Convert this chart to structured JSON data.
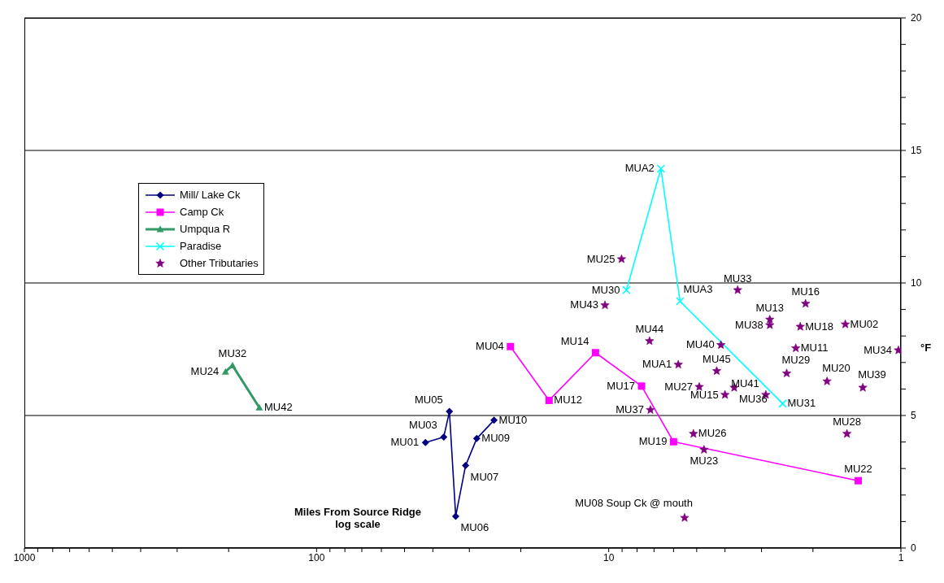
{
  "chart_data": {
    "type": "line",
    "xlabel": "Miles From Source Ridge\nlog scale",
    "ylabel": "°F",
    "log": "x",
    "xlim": [
      1000,
      1
    ],
    "xticks": [
      1000,
      {
        "value": 900,
        "label": null
      },
      {
        "value": 800,
        "label": null
      },
      {
        "value": 700,
        "label": null
      },
      {
        "value": 600,
        "label": null
      },
      {
        "value": 500,
        "label": null
      },
      {
        "value": 400,
        "label": null
      },
      {
        "value": 300,
        "label": null
      },
      {
        "value": 200,
        "label": null
      },
      100,
      {
        "value": 90,
        "label": null
      },
      {
        "value": 80,
        "label": null
      },
      {
        "value": 70,
        "label": null
      },
      {
        "value": 60,
        "label": null
      },
      {
        "value": 50,
        "label": null
      },
      {
        "value": 40,
        "label": null
      },
      {
        "value": 30,
        "label": null
      },
      {
        "value": 20,
        "label": null
      },
      10,
      {
        "value": 9,
        "label": null
      },
      {
        "value": 8,
        "label": null
      },
      {
        "value": 7,
        "label": null
      },
      {
        "value": 6,
        "label": null
      },
      {
        "value": 5,
        "label": null
      },
      {
        "value": 4,
        "label": null
      },
      {
        "value": 3,
        "label": null
      },
      {
        "value": 2,
        "label": null
      },
      1
    ],
    "ylim": [
      0,
      20
    ],
    "yticks": [
      0,
      {
        "value": 1,
        "label": null
      },
      {
        "value": 2,
        "label": null
      },
      {
        "value": 3,
        "label": null
      },
      {
        "value": 4,
        "label": null
      },
      5,
      {
        "value": 6,
        "label": null
      },
      {
        "value": 7,
        "label": null
      },
      {
        "value": 8,
        "label": null
      },
      {
        "value": 9,
        "label": null
      },
      10,
      {
        "value": 11,
        "label": null
      },
      {
        "value": 12,
        "label": null
      },
      {
        "value": 13,
        "label": null
      },
      {
        "value": 14,
        "label": null
      },
      15,
      {
        "value": 16,
        "label": null
      },
      {
        "value": 17,
        "label": null
      },
      {
        "value": 18,
        "label": null
      },
      {
        "value": 19,
        "label": null
      },
      20
    ],
    "grid": "y",
    "legend": "top left",
    "series": [
      {
        "name": "Mill/ Lake Ck",
        "color": "#000080",
        "marker": "diamond",
        "x": [
          42.4,
          36.7,
          35.1,
          33.4,
          30.9,
          28.3,
          24.7
        ],
        "values": [
          3.98,
          4.19,
          5.15,
          1.2,
          3.11,
          4.13,
          4.82
        ]
      },
      {
        "name": "Camp Ck",
        "color": "#ff00ff",
        "marker": "square",
        "x": [
          21.7,
          16.0,
          11.1,
          7.72,
          6.0,
          1.4
        ],
        "values": [
          7.6,
          5.57,
          7.37,
          6.11,
          4.01,
          2.54
        ]
      },
      {
        "name": "Umpqua R",
        "color": "#339966",
        "marker": "triangle",
        "x": [
          205,
          194,
          157
        ],
        "values": [
          6.65,
          6.89,
          5.3
        ]
      },
      {
        "name": "Paradise",
        "color": "#00ffff",
        "marker": "cross",
        "x": [
          8.7,
          6.63,
          5.7,
          2.54
        ],
        "values": [
          9.73,
          14.31,
          9.31,
          5.45
        ]
      },
      {
        "name": "Other Tributaries",
        "type": "scatter",
        "color": "#800080",
        "marker": "star",
        "x": [
          9.04,
          10.3,
          7.25,
          5.78,
          7.2,
          5.5,
          5.13,
          4.72,
          4.9,
          4.0,
          4.27,
          3.72,
          4.13,
          3.62,
          2.81,
          2.81,
          2.9,
          2.46,
          2.29,
          2.21,
          2.12,
          1.79,
          1.55,
          1.53,
          1.35,
          1.02
        ],
        "values": [
          10.9,
          9.16,
          7.81,
          6.92,
          5.21,
          1.14,
          4.31,
          3.71,
          6.08,
          5.78,
          6.68,
          6.05,
          7.66,
          9.73,
          8.62,
          8.41,
          5.78,
          6.59,
          7.54,
          8.35,
          9.22,
          6.29,
          8.44,
          4.31,
          6.05,
          7.46
        ]
      }
    ],
    "annotations": [
      {
        "text": "MU01",
        "x": 42.4,
        "y": 3.98
      },
      {
        "text": "MU03",
        "x": 36.7,
        "y": 4.19
      },
      {
        "text": "MU05",
        "x": 35.1,
        "y": 5.15
      },
      {
        "text": "MU06",
        "x": 33.4,
        "y": 1.2
      },
      {
        "text": "MU07",
        "x": 30.9,
        "y": 3.11
      },
      {
        "text": "MU09",
        "x": 28.3,
        "y": 4.13
      },
      {
        "text": "MU10",
        "x": 24.7,
        "y": 4.82
      },
      {
        "text": "MU04",
        "x": 21.7,
        "y": 7.6
      },
      {
        "text": "MU12",
        "x": 16.0,
        "y": 5.57
      },
      {
        "text": "MU14",
        "x": 11.1,
        "y": 7.37
      },
      {
        "text": "MU17",
        "x": 7.72,
        "y": 6.11
      },
      {
        "text": "MU19",
        "x": 6.0,
        "y": 4.01
      },
      {
        "text": "MU22",
        "x": 1.4,
        "y": 2.54
      },
      {
        "text": "MU24",
        "x": 205,
        "y": 6.65
      },
      {
        "text": "MU32",
        "x": 194,
        "y": 6.89
      },
      {
        "text": "MU42",
        "x": 157,
        "y": 5.3
      },
      {
        "text": "MU30",
        "x": 8.7,
        "y": 9.73
      },
      {
        "text": "MUA2",
        "x": 6.63,
        "y": 14.31
      },
      {
        "text": "MUA3",
        "x": 5.7,
        "y": 9.31
      },
      {
        "text": "MU31",
        "x": 2.54,
        "y": 5.45
      },
      {
        "text": "MU25",
        "x": 9.04,
        "y": 10.9
      },
      {
        "text": "MU43",
        "x": 10.3,
        "y": 9.16
      },
      {
        "text": "MU44",
        "x": 7.25,
        "y": 7.81
      },
      {
        "text": "MUA1",
        "x": 5.78,
        "y": 6.92
      },
      {
        "text": "MU37",
        "x": 7.2,
        "y": 5.21
      },
      {
        "text": "MU08 Soup Ck @ mouth",
        "x": 5.5,
        "y": 1.14
      },
      {
        "text": "MU26",
        "x": 5.13,
        "y": 4.31
      },
      {
        "text": "MU23",
        "x": 4.72,
        "y": 3.71
      },
      {
        "text": "MU27",
        "x": 4.9,
        "y": 6.08
      },
      {
        "text": "MU15",
        "x": 4.0,
        "y": 5.78
      },
      {
        "text": "MU45",
        "x": 4.27,
        "y": 6.68
      },
      {
        "text": "MU36",
        "x": 3.72,
        "y": 6.05
      },
      {
        "text": "MU40",
        "x": 4.13,
        "y": 7.66
      },
      {
        "text": "MU33",
        "x": 3.62,
        "y": 9.73
      },
      {
        "text": "MU13",
        "x": 2.81,
        "y": 8.62
      },
      {
        "text": "MU38",
        "x": 2.81,
        "y": 8.41
      },
      {
        "text": "MU41",
        "x": 2.9,
        "y": 5.78
      },
      {
        "text": "MU29",
        "x": 2.46,
        "y": 6.59
      },
      {
        "text": "MU11",
        "x": 2.29,
        "y": 7.54
      },
      {
        "text": "MU18",
        "x": 2.21,
        "y": 8.35
      },
      {
        "text": "MU16",
        "x": 2.12,
        "y": 9.22
      },
      {
        "text": "MU20",
        "x": 1.79,
        "y": 6.29
      },
      {
        "text": "MU02",
        "x": 1.55,
        "y": 8.44
      },
      {
        "text": "MU28",
        "x": 1.53,
        "y": 4.31
      },
      {
        "text": "MU39",
        "x": 1.35,
        "y": 6.05
      },
      {
        "text": "MU34",
        "x": 1.02,
        "y": 7.46
      }
    ]
  }
}
